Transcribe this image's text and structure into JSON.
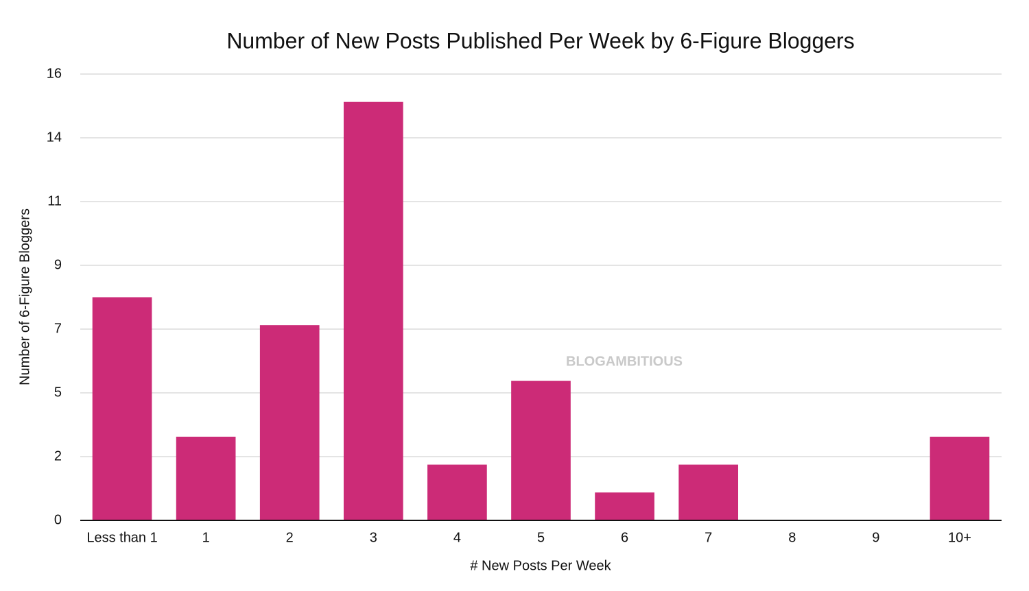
{
  "chart_data": {
    "type": "bar",
    "title": "Number of New Posts Published Per Week by 6-Figure Bloggers",
    "xlabel": "# New Posts Per Week",
    "ylabel": "Number of 6-Figure Bloggers",
    "annotation": "BLOGAMBITIOUS",
    "categories": [
      "Less than 1",
      "1",
      "2",
      "3",
      "4",
      "5",
      "6",
      "7",
      "8",
      "9",
      "10+"
    ],
    "values": [
      8,
      3,
      7,
      15,
      2,
      5,
      1,
      2,
      0,
      0,
      3
    ],
    "color": "#cc2b77",
    "ylim": [
      0,
      16
    ],
    "yticks": [
      0,
      {
        "value": 2.2857,
        "label": "2"
      },
      {
        "value": 4.5714,
        "label": "5"
      },
      {
        "value": 6.8571,
        "label": "7"
      },
      {
        "value": 9.1429,
        "label": "9"
      },
      {
        "value": 11.4286,
        "label": "11"
      },
      {
        "value": 13.7143,
        "label": "14"
      },
      16
    ],
    "grid": true
  }
}
